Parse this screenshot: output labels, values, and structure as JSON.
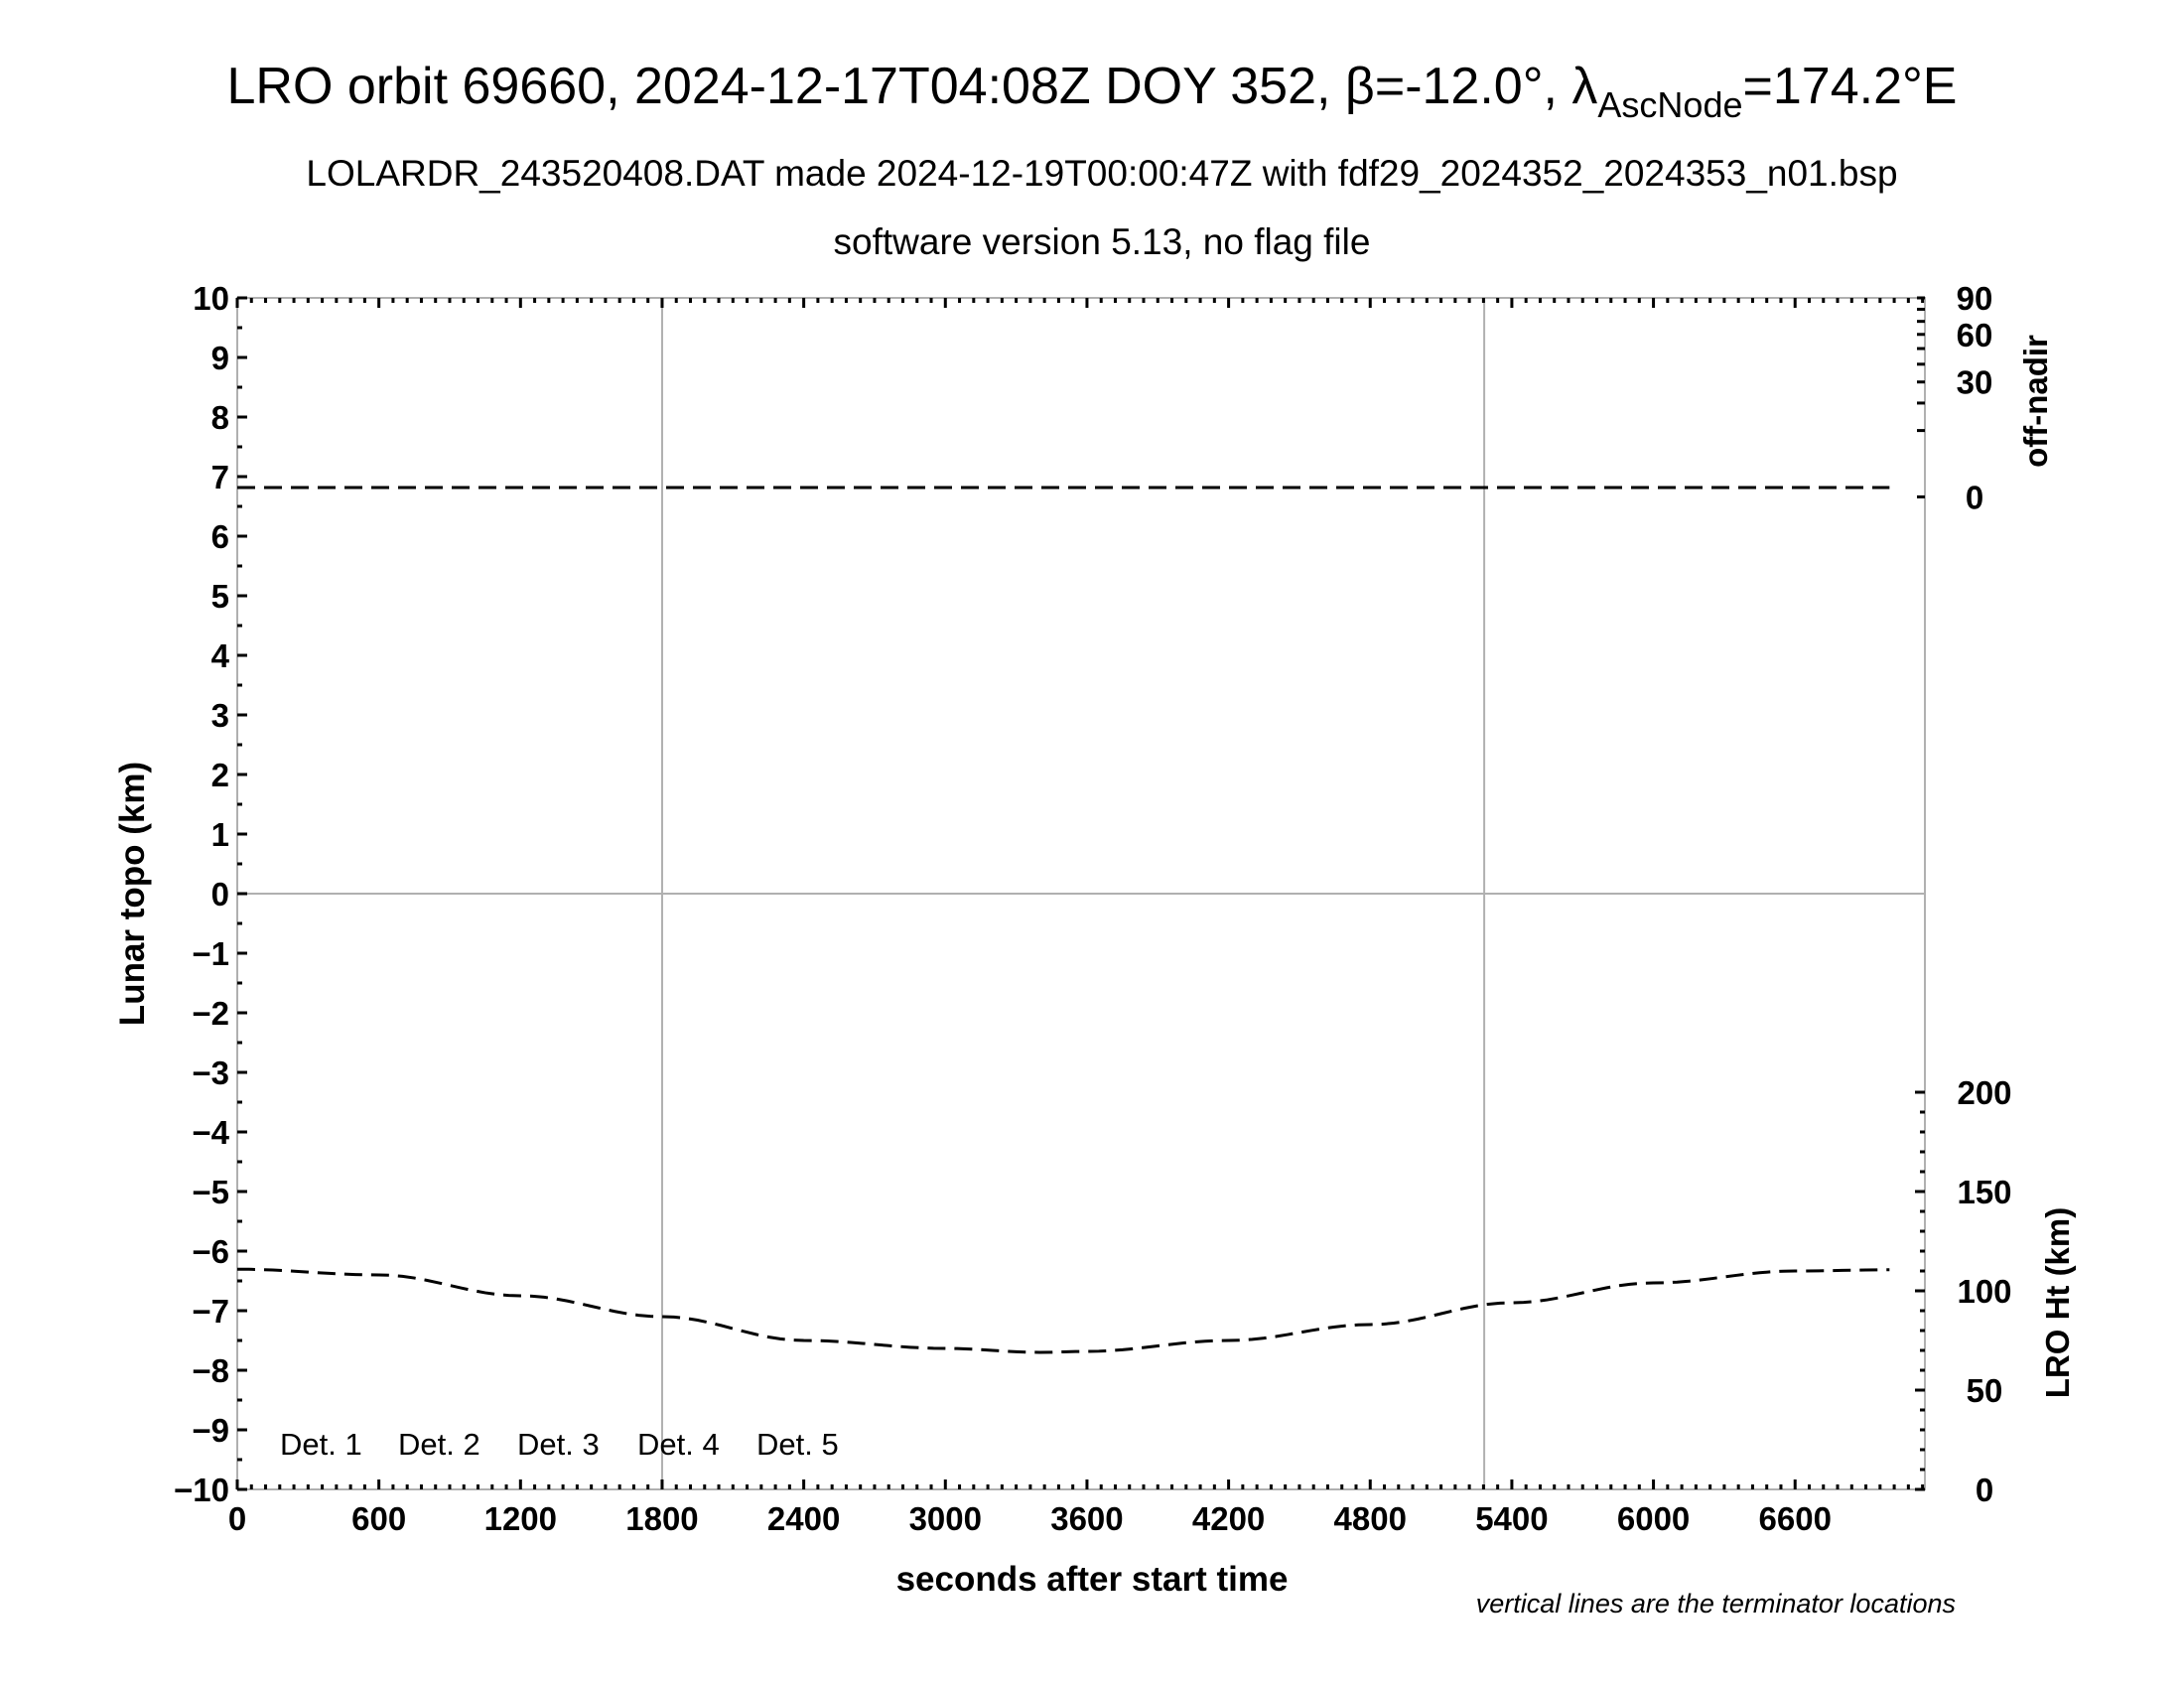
{
  "chart_data": {
    "type": "line",
    "title": "LRO orbit 69660, 2024-12-17T04:08Z DOY 352, β=-12.0°, λ",
    "title_subscript": "AscNode",
    "title_suffix": "=174.2°E",
    "subtitle": "LOLARDR_243520408.DAT made 2024-12-19T00:00:47Z with fdf29_2024352_2024353_n01.bsp",
    "subtitle2": "software version 5.13, no flag file",
    "xlabel": "seconds after start time",
    "ylabel": "Lunar topo (km)",
    "y2label_top": "off-nadir",
    "y2label_bottom": "LRO Ht (km)",
    "footnote": "vertical lines are the terminator locations",
    "xlim": [
      0,
      7150
    ],
    "ylim": [
      -10,
      10
    ],
    "x_ticks": [
      "0",
      "600",
      "1200",
      "1800",
      "2400",
      "3000",
      "3600",
      "4200",
      "4800",
      "5400",
      "6000",
      "6600"
    ],
    "y_ticks": [
      "10",
      "9",
      "8",
      "7",
      "6",
      "5",
      "4",
      "3",
      "2",
      "1",
      "0",
      "−1",
      "−2",
      "−3",
      "−4",
      "−5",
      "−6",
      "−7",
      "−8",
      "−9",
      "−10"
    ],
    "off_nadir_ticks": [
      "90",
      "60",
      "30",
      "0"
    ],
    "lro_ht_ticks": [
      "200",
      "150",
      "100",
      "50",
      "0"
    ],
    "terminator_seconds": [
      1800,
      5283
    ],
    "legend": [
      {
        "label": "Det. 1",
        "color": "#000000"
      },
      {
        "label": "Det. 2",
        "color": "#0000ff"
      },
      {
        "label": "Det. 3",
        "color": "#00ff00"
      },
      {
        "label": "Det. 4",
        "color": "#ffa500"
      },
      {
        "label": "Det. 5",
        "color": "#ff0000"
      }
    ],
    "series": [
      {
        "id": "off-nadir",
        "units": "deg",
        "style": "dashed",
        "x": [
          0,
          1000,
          2000,
          3000,
          4000,
          5000,
          6000,
          7000
        ],
        "y": [
          0.2,
          0.2,
          0.2,
          0.2,
          0.2,
          0.2,
          0.2,
          0.2
        ]
      },
      {
        "id": "lro-height",
        "units": "km",
        "style": "dashed",
        "x": [
          0,
          600,
          1200,
          1800,
          2400,
          3000,
          3400,
          3600,
          4200,
          4800,
          5400,
          6000,
          6600,
          7000
        ],
        "y": [
          110.9,
          108,
          97.5,
          87,
          75,
          71,
          69,
          69.5,
          75,
          83,
          94,
          104,
          110,
          110.6
        ]
      }
    ],
    "grid": false
  }
}
